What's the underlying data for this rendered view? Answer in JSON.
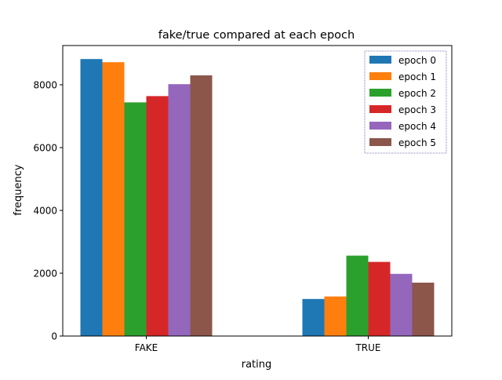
{
  "chart_data": {
    "type": "bar",
    "title": "fake/true compared at each epoch",
    "xlabel": "rating",
    "ylabel": "frequency",
    "categories": [
      "FAKE",
      "TRUE"
    ],
    "ylim": [
      0,
      9250
    ],
    "yticks": [
      0,
      2000,
      4000,
      6000,
      8000
    ],
    "grid": false,
    "legend_position": "top-right",
    "series": [
      {
        "name": "epoch 0",
        "color": "#1f77b4",
        "values": [
          8820,
          1180
        ]
      },
      {
        "name": "epoch 1",
        "color": "#ff7f0e",
        "values": [
          8720,
          1260
        ]
      },
      {
        "name": "epoch 2",
        "color": "#2ca02c",
        "values": [
          7440,
          2560
        ]
      },
      {
        "name": "epoch 3",
        "color": "#d62728",
        "values": [
          7640,
          2360
        ]
      },
      {
        "name": "epoch 4",
        "color": "#9467bd",
        "values": [
          8020,
          1980
        ]
      },
      {
        "name": "epoch 5",
        "color": "#8c564b",
        "values": [
          8300,
          1700
        ]
      }
    ]
  }
}
